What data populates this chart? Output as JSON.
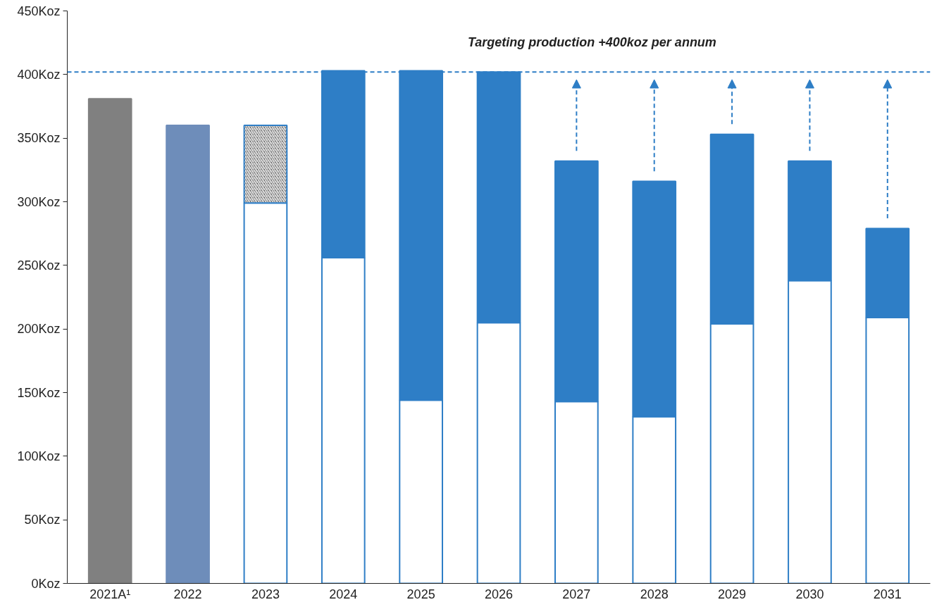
{
  "chart_data": {
    "type": "bar",
    "stacked": true,
    "categories": [
      "2021A¹",
      "2022",
      "2023",
      "2024",
      "2025",
      "2026",
      "2027",
      "2028",
      "2029",
      "2030",
      "2031"
    ],
    "series": [
      {
        "colors": [
          "#808080",
          "#6e8dba",
          "#ffffff",
          "#ffffff",
          "#ffffff",
          "#ffffff",
          "#ffffff",
          "#ffffff",
          "#ffffff",
          "#ffffff",
          "#ffffff"
        ],
        "values": [
          381,
          360,
          299,
          256,
          144,
          205,
          143,
          131,
          204,
          238,
          209
        ]
      },
      {
        "color": "#444444",
        "values": [
          null,
          null,
          61,
          null,
          null,
          null,
          null,
          null,
          null,
          null,
          null
        ]
      },
      {
        "color": "#2e7ec6",
        "values": [
          null,
          null,
          null,
          147,
          259,
          197,
          189,
          185,
          149,
          94,
          70
        ]
      }
    ],
    "ylim": [
      0,
      450
    ],
    "yticks": [
      {
        "value": 0,
        "label": "0Koz"
      },
      {
        "value": 50,
        "label": "50Koz"
      },
      {
        "value": 100,
        "label": "100Koz"
      },
      {
        "value": 150,
        "label": "150Koz"
      },
      {
        "value": 200,
        "label": "200Koz"
      },
      {
        "value": 250,
        "label": "250Koz"
      },
      {
        "value": 300,
        "label": "300Koz"
      },
      {
        "value": 350,
        "label": "350Koz"
      },
      {
        "value": 400,
        "label": "400Koz"
      },
      {
        "value": 450,
        "label": "450Koz"
      }
    ],
    "ref_lines": [
      {
        "axis": "y",
        "value": 402,
        "label": "Targeting production +400koz per annum",
        "color": "#2e7ec6",
        "line_style": "dashed"
      }
    ],
    "grid": false
  }
}
